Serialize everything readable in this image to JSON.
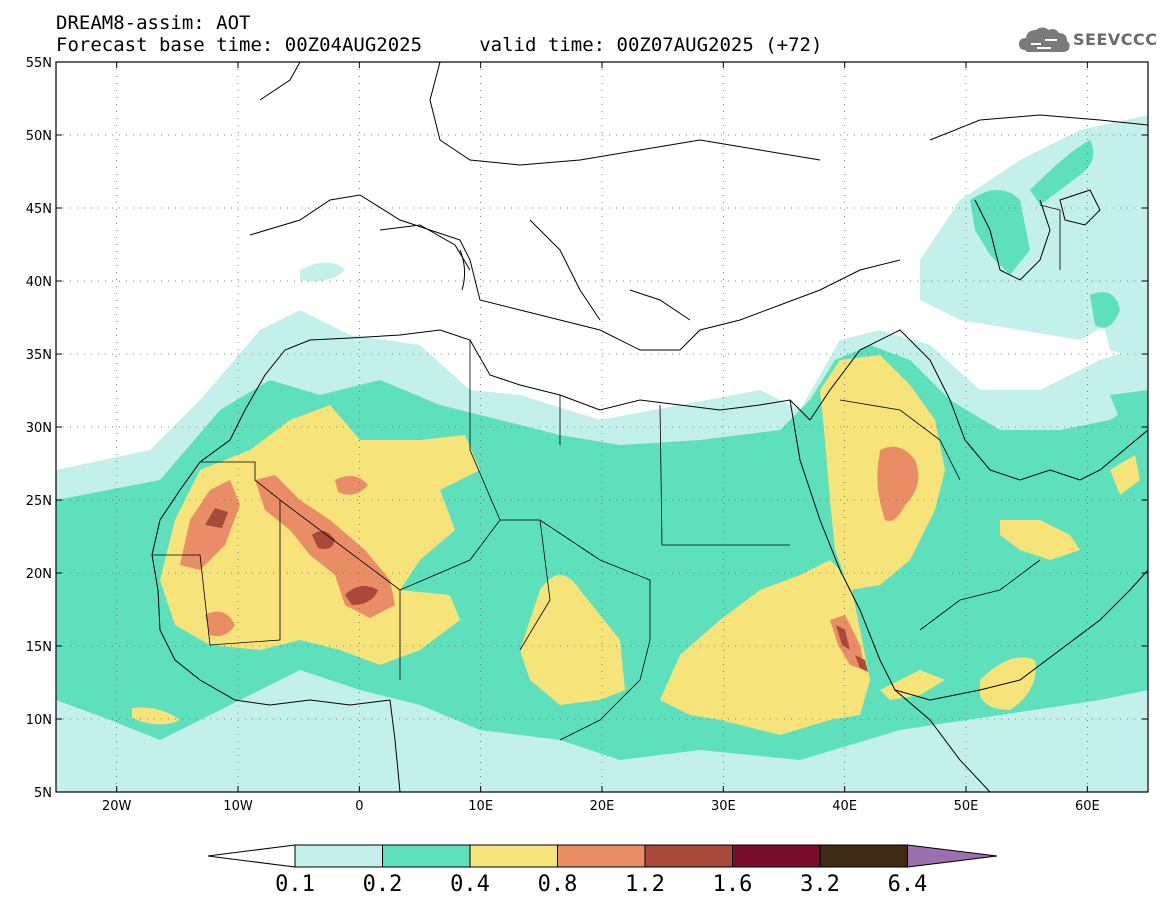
{
  "header": {
    "title_line1": "DREAM8-assim: AOT",
    "title_line2": "Forecast base time: 00Z04AUG2025     valid time: 00Z07AUG2025 (+72)",
    "logo_text": "SEEVCCC"
  },
  "map": {
    "lon_range": [
      -25,
      65
    ],
    "lat_range": [
      5,
      55
    ],
    "lat_ticks": [
      {
        "value": 55,
        "label": "55N"
      },
      {
        "value": 50,
        "label": "50N"
      },
      {
        "value": 45,
        "label": "45N"
      },
      {
        "value": 40,
        "label": "40N"
      },
      {
        "value": 35,
        "label": "35N"
      },
      {
        "value": 30,
        "label": "30N"
      },
      {
        "value": 25,
        "label": "25N"
      },
      {
        "value": 20,
        "label": "20N"
      },
      {
        "value": 15,
        "label": "15N"
      },
      {
        "value": 10,
        "label": "10N"
      },
      {
        "value": 5,
        "label": "5N"
      }
    ],
    "lon_ticks": [
      {
        "value": -20,
        "label": "20W"
      },
      {
        "value": -10,
        "label": "10W"
      },
      {
        "value": 0,
        "label": "0"
      },
      {
        "value": 10,
        "label": "10E"
      },
      {
        "value": 20,
        "label": "20E"
      },
      {
        "value": 30,
        "label": "30E"
      },
      {
        "value": 40,
        "label": "40E"
      },
      {
        "value": 50,
        "label": "50E"
      },
      {
        "value": 60,
        "label": "60E"
      }
    ]
  },
  "colorbar": {
    "colors": [
      "#c3f0ea",
      "#5ee0bc",
      "#f6e37a",
      "#e88d66",
      "#a8493a",
      "#7a0e2a",
      "#3e2a14"
    ],
    "upper_color": "#9b6fb0",
    "labels": [
      "0.1",
      "0.2",
      "0.4",
      "0.8",
      "1.2",
      "1.6",
      "3.2",
      "6.4"
    ]
  }
}
